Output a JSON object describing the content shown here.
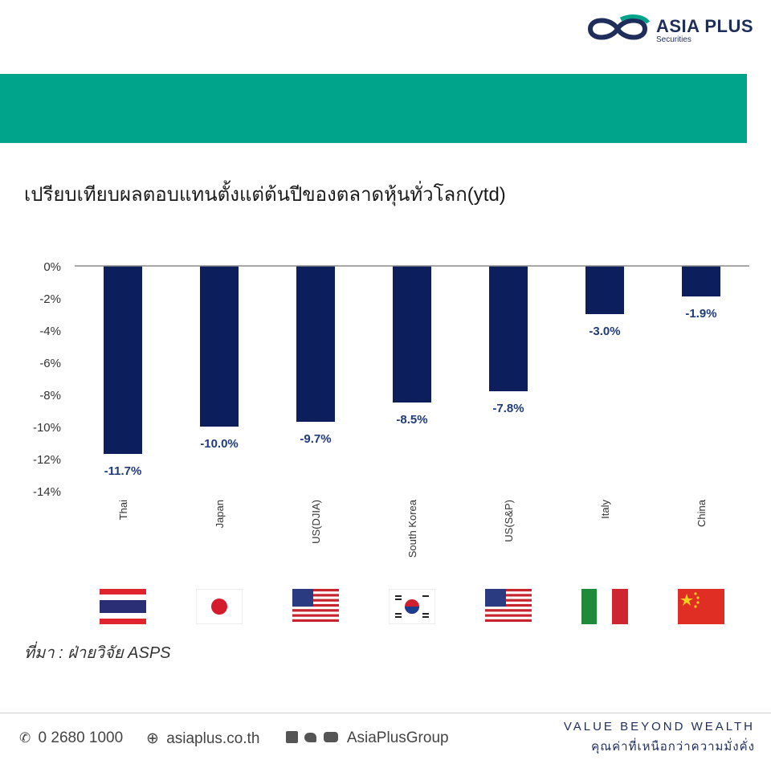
{
  "brand": {
    "name": "ASIA PLUS",
    "sub": "Securities"
  },
  "title": "เปรียบเทียบผลตอบแทนตั้งแต่ต้นปีของตลาดหุ้นทั่วโลก(ytd)",
  "source": "ที่มา : ฝ่ายวิจัย ASPS",
  "colors": {
    "accent_band": "#00a48a",
    "bar": "#0c1f5c",
    "label": "#1f3b7a"
  },
  "chart_data": {
    "type": "bar",
    "categories": [
      "Thai",
      "Japan",
      "US(DJIA)",
      "South Korea",
      "US(S&P)",
      "Italy",
      "China"
    ],
    "values": [
      -11.7,
      -10.0,
      -9.7,
      -8.5,
      -7.8,
      -3.0,
      -1.9
    ],
    "data_labels": [
      "-11.7%",
      "-10.0%",
      "-9.7%",
      "-8.5%",
      "-7.8%",
      "-3.0%",
      "-1.9%"
    ],
    "yticks": [
      "0%",
      "-2%",
      "-4%",
      "-6%",
      "-8%",
      "-10%",
      "-12%",
      "-14%"
    ],
    "ylim": [
      -14,
      0
    ],
    "grid": false,
    "legend": "none",
    "flags": [
      "thailand-flag",
      "japan-flag",
      "usa-flag",
      "south-korea-flag",
      "usa-flag",
      "italy-flag",
      "china-flag"
    ]
  },
  "footer": {
    "phone": "0 2680 1000",
    "website": "asiaplus.co.th",
    "social": "AsiaPlusGroup",
    "tagline_en": "VALUE BEYOND WEALTH",
    "tagline_th": "คุณค่าที่เหนือกว่าความมั่งคั่ง"
  }
}
